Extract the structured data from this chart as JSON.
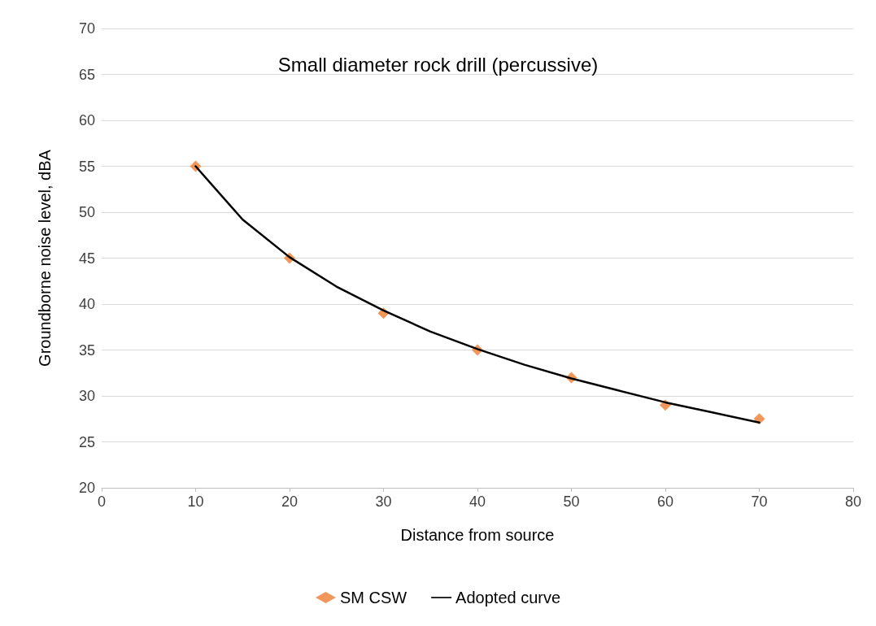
{
  "chart_data": {
    "type": "scatter",
    "title": "Small diameter rock drill (percussive)",
    "xlabel": "Distance from source",
    "ylabel": "Groundborne noise level, dBA",
    "xlim": [
      0,
      80
    ],
    "xticks": [
      0,
      10,
      20,
      30,
      40,
      50,
      60,
      70,
      80
    ],
    "ylim": [
      20,
      70
    ],
    "yticks": [
      20,
      25,
      30,
      35,
      40,
      45,
      50,
      55,
      60,
      65,
      70
    ],
    "grid": "y",
    "legend": "bottom",
    "series": [
      {
        "name": "SM CSW",
        "marker": "diamond",
        "color": "#ed7d31",
        "x": [
          10,
          20,
          30,
          40,
          50,
          60,
          70
        ],
        "values": [
          55,
          45,
          39,
          35,
          32,
          29,
          27.5
        ]
      },
      {
        "name": "Adopted curve",
        "type": "line",
        "marker": "none",
        "line_style": "solid",
        "color": "#000000",
        "x": [
          10,
          15,
          20,
          25,
          30,
          35,
          40,
          45,
          50,
          55,
          60,
          65,
          70
        ],
        "values": [
          55,
          49.2,
          45.1,
          41.9,
          39.3,
          37.0,
          35.1,
          33.4,
          31.9,
          30.6,
          29.3,
          28.2,
          27.1
        ]
      }
    ]
  }
}
